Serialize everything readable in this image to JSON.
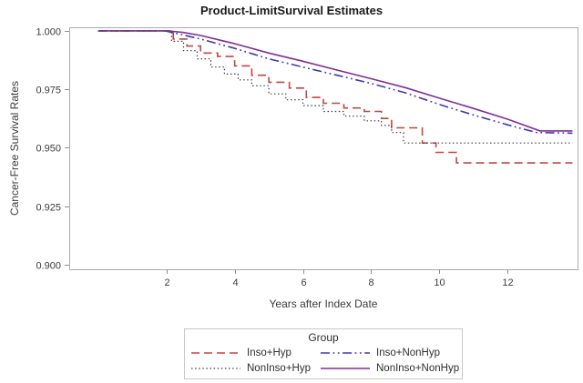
{
  "chart_data": {
    "type": "line",
    "title": "Product-LimitSurvival Estimates",
    "xlabel": "Years after Index Date",
    "ylabel": "Cancer-Free Survival Rates",
    "xlim": [
      -0.85,
      14.05
    ],
    "ylim": [
      0.898,
      1.0015
    ],
    "x_ticks": [
      2,
      4,
      6,
      8,
      10,
      12
    ],
    "y_ticks": [
      1.0,
      0.975,
      0.95,
      0.925,
      0.9
    ],
    "y_tick_labels": [
      "1.000",
      "0.975",
      "0.950",
      "0.925",
      "0.900"
    ],
    "grid": false,
    "frame_color": "#ababab",
    "tick_color": "#8f8f8f",
    "text_color": "#3c3c3c",
    "legend": {
      "title": "Group",
      "position": "bottom",
      "order": [
        0,
        2,
        1,
        3
      ]
    },
    "series": [
      {
        "name": "Inso+Hyp",
        "color": "#c1473f",
        "dash": "9 5",
        "width": 1.6,
        "interp": "step",
        "points": [
          [
            0,
            1.0
          ],
          [
            1.9,
            1.0
          ],
          [
            2.2,
            0.9965
          ],
          [
            2.6,
            0.9935
          ],
          [
            3.0,
            0.9905
          ],
          [
            3.5,
            0.989
          ],
          [
            4.0,
            0.985
          ],
          [
            4.5,
            0.981
          ],
          [
            5.0,
            0.978
          ],
          [
            5.6,
            0.9755
          ],
          [
            6.1,
            0.9715
          ],
          [
            6.6,
            0.969
          ],
          [
            7.2,
            0.967
          ],
          [
            7.8,
            0.9655
          ],
          [
            8.3,
            0.9625
          ],
          [
            8.6,
            0.9585
          ],
          [
            9.5,
            0.952
          ],
          [
            9.9,
            0.948
          ],
          [
            10.5,
            0.9435
          ],
          [
            13.9,
            0.9435
          ]
        ]
      },
      {
        "name": "NonInso+Hyp",
        "color": "#3f3f3f",
        "dash": "1.5 2.6",
        "width": 1.2,
        "interp": "step",
        "points": [
          [
            0,
            1.0
          ],
          [
            1.9,
            1.0
          ],
          [
            2.15,
            0.9955
          ],
          [
            2.5,
            0.9915
          ],
          [
            2.9,
            0.988
          ],
          [
            3.3,
            0.9845
          ],
          [
            3.7,
            0.9815
          ],
          [
            4.1,
            0.979
          ],
          [
            4.5,
            0.9765
          ],
          [
            5.0,
            0.973
          ],
          [
            5.5,
            0.9705
          ],
          [
            6.0,
            0.968
          ],
          [
            6.6,
            0.9655
          ],
          [
            7.2,
            0.9635
          ],
          [
            7.8,
            0.9615
          ],
          [
            8.3,
            0.9595
          ],
          [
            8.6,
            0.9565
          ],
          [
            8.95,
            0.952
          ],
          [
            13.9,
            0.952
          ]
        ]
      },
      {
        "name": "Inso+NonHyp",
        "color": "#3f3aa6",
        "dash": "10 3.5 1.8 3.5 1.8 3.5",
        "width": 1.6,
        "interp": "linear",
        "points": [
          [
            0,
            1.0
          ],
          [
            1.95,
            1.0
          ],
          [
            2.4,
            0.9985
          ],
          [
            3.0,
            0.9965
          ],
          [
            4.0,
            0.9925
          ],
          [
            5.0,
            0.988
          ],
          [
            6.0,
            0.9845
          ],
          [
            7.0,
            0.981
          ],
          [
            8.0,
            0.9775
          ],
          [
            9.0,
            0.9735
          ],
          [
            10.0,
            0.9685
          ],
          [
            11.0,
            0.964
          ],
          [
            12.0,
            0.9598
          ],
          [
            12.85,
            0.9565
          ],
          [
            13.9,
            0.9562
          ]
        ]
      },
      {
        "name": "NonInso+NonHyp",
        "color": "#7f2f96",
        "dash": "",
        "width": 1.6,
        "interp": "linear",
        "points": [
          [
            0,
            1.0
          ],
          [
            2.05,
            1.0
          ],
          [
            2.5,
            0.9993
          ],
          [
            3.0,
            0.998
          ],
          [
            4.0,
            0.9945
          ],
          [
            5.0,
            0.9905
          ],
          [
            6.0,
            0.987
          ],
          [
            7.0,
            0.9832
          ],
          [
            8.0,
            0.9795
          ],
          [
            9.0,
            0.9757
          ],
          [
            10.0,
            0.9712
          ],
          [
            11.0,
            0.9668
          ],
          [
            12.0,
            0.9622
          ],
          [
            12.95,
            0.9572
          ],
          [
            13.9,
            0.9572
          ]
        ]
      }
    ]
  }
}
